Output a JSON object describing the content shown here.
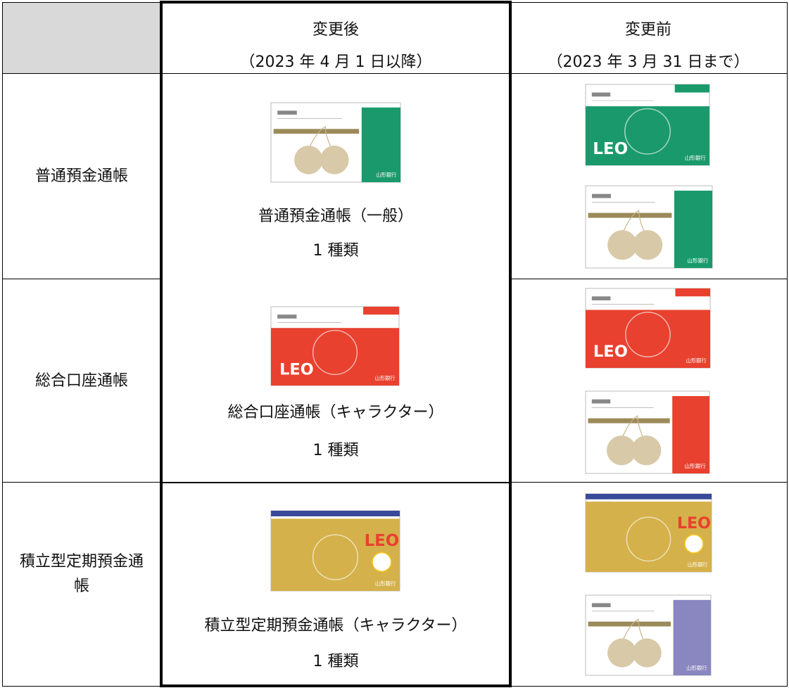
{
  "table": {
    "header": {
      "after": {
        "title": "変更後",
        "period": "（2023 年 4 月 1 日以降）"
      },
      "before": {
        "title": "変更前",
        "period": "（2023 年 3 月 31 日まで）"
      }
    },
    "rows": [
      {
        "label": "普通預金通帳",
        "after_name": "普通預金通帳（一般）",
        "after_count": "1 種類"
      },
      {
        "label": "総合口座通帳",
        "after_name": "総合口座通帳（キャラクター）",
        "after_count": "1 種類"
      },
      {
        "label": "積立型定期預金通帳",
        "after_name": "積立型定期預金通帳（キャラクター）",
        "after_count": "1 種類"
      }
    ]
  },
  "passbook": {
    "brand": "LEO",
    "bank": "山形銀行"
  }
}
